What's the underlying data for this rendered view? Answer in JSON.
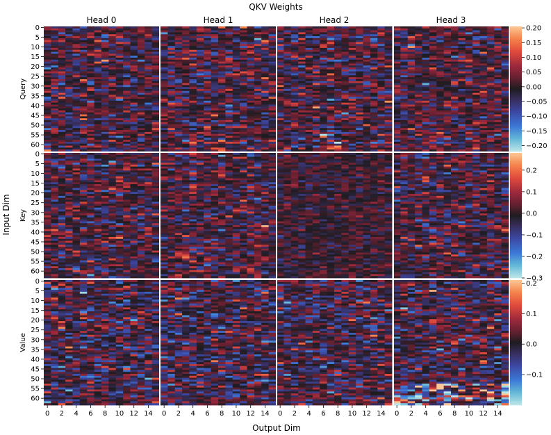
{
  "chart_data": {
    "type": "heatmap",
    "title": "QKV Weights",
    "xlabel": "Output Dim",
    "ylabel": "Input Dim",
    "column_titles": [
      "Head 0",
      "Head 1",
      "Head 2",
      "Head 3"
    ],
    "row_labels": [
      "Query",
      "Key",
      "Value"
    ],
    "x_ticks": [
      "0",
      "2",
      "4",
      "6",
      "8",
      "10",
      "12",
      "14"
    ],
    "y_ticks": [
      "0",
      "5",
      "10",
      "15",
      "20",
      "25",
      "30",
      "35",
      "40",
      "45",
      "50",
      "55",
      "60"
    ],
    "n_rows": 64,
    "n_cols": 16,
    "colorbars": [
      {
        "matrix": "Query",
        "vmin": -0.22,
        "vmax": 0.205,
        "tick_values": [
          0.2,
          0.15,
          0.1,
          0.05,
          0.0,
          -0.05,
          -0.1,
          -0.15,
          -0.2
        ],
        "tick_labels": [
          "0.20",
          "0.15",
          "0.10",
          "0.05",
          "0.00",
          "−0.05",
          "−0.10",
          "−0.15",
          "−0.20"
        ]
      },
      {
        "matrix": "Key",
        "vmin": -0.3,
        "vmax": 0.28,
        "tick_values": [
          0.2,
          0.1,
          0.0,
          -0.1,
          -0.2,
          -0.3
        ],
        "tick_labels": [
          "0.2",
          "0.1",
          "0.0",
          "−0.1",
          "−0.2",
          "−0.3"
        ]
      },
      {
        "matrix": "Value",
        "vmin": -0.2,
        "vmax": 0.21,
        "tick_values": [
          0.2,
          0.1,
          0.0,
          -0.1
        ],
        "tick_labels": [
          "0.2",
          "0.1",
          "0.0",
          "−0.1"
        ]
      }
    ],
    "colormap": "icefire",
    "grid": false
  }
}
